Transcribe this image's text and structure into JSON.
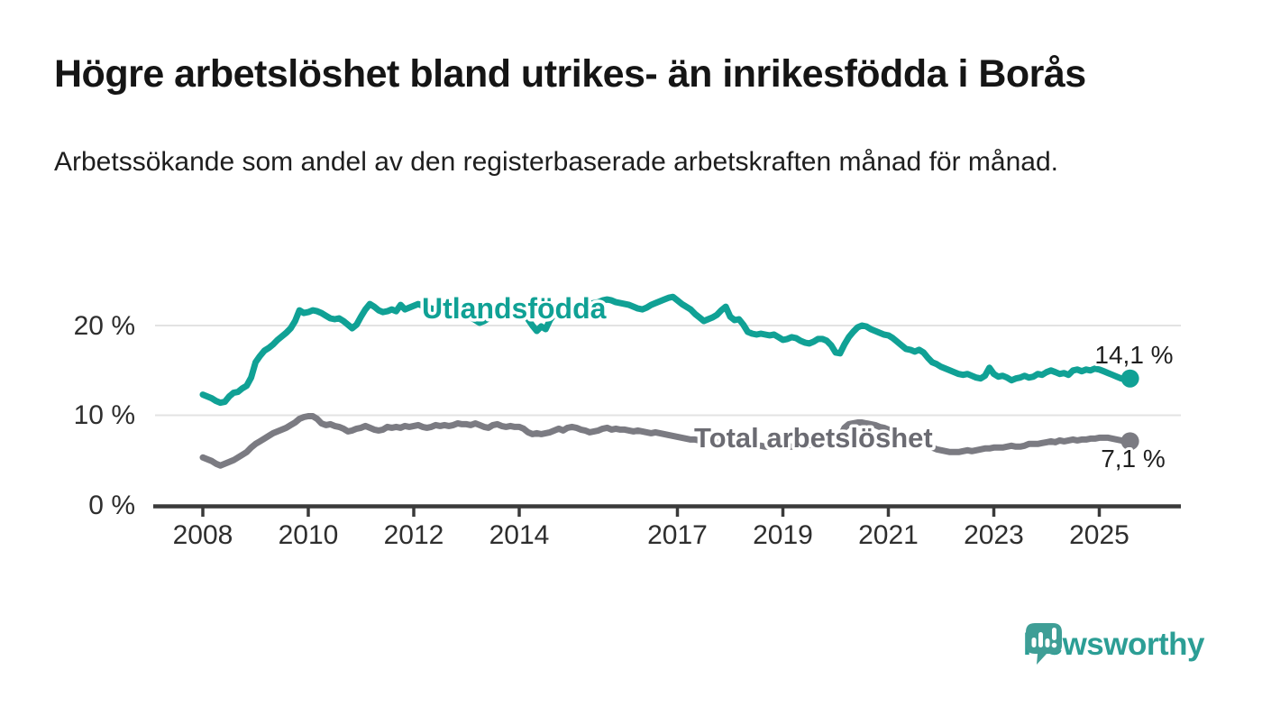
{
  "header": {
    "title": "Högre arbetslöshet bland utrikes- än inrikesfödda i Borås",
    "subtitle": "Arbetssökande som andel av den registerbaserade arbetskraften månad för månad."
  },
  "chart_data": {
    "type": "line",
    "title": "Högre arbetslöshet bland utrikes- än inrikesfödda i Borås",
    "subtitle": "Arbetssökande som andel av den registerbaserade arbetskraften månad för månad.",
    "unit": "%",
    "grid": "horizontal",
    "legend": "inline-labels",
    "x_axis": {
      "start": "2008-01",
      "end": "2025-08",
      "tick_labels": [
        "2008",
        "2010",
        "2012",
        "2014",
        "2017",
        "2019",
        "2021",
        "2023",
        "2025"
      ]
    },
    "y_axis": {
      "ticks": [
        0,
        10,
        20
      ],
      "tick_labels": [
        "0 %",
        "10 %",
        "20 %"
      ],
      "range": [
        0,
        24
      ]
    },
    "series": [
      {
        "name": "Utlandsfödda",
        "color": "#10a195",
        "label_color": "#10a195",
        "frequency": "monthly",
        "start": "2008-01",
        "end_label": "14,1 %",
        "end_value": 14.1,
        "values": [
          12.3,
          12.1,
          11.9,
          11.6,
          11.4,
          11.5,
          12.1,
          12.5,
          12.6,
          13.0,
          13.3,
          14.2,
          15.9,
          16.6,
          17.2,
          17.5,
          17.9,
          18.4,
          18.8,
          19.2,
          19.7,
          20.5,
          21.7,
          21.4,
          21.5,
          21.7,
          21.6,
          21.4,
          21.1,
          20.8,
          20.7,
          20.8,
          20.5,
          20.1,
          19.7,
          20.1,
          21.0,
          21.8,
          22.4,
          22.1,
          21.7,
          21.5,
          21.6,
          21.8,
          21.6,
          22.3,
          21.8,
          22.0,
          22.2,
          22.4,
          22.2,
          22.0,
          21.9,
          21.8,
          21.7,
          21.6,
          21.5,
          21.4,
          21.3,
          21.2,
          21.1,
          20.9,
          20.6,
          20.3,
          20.5,
          20.8,
          21.0,
          21.3,
          21.5,
          21.7,
          21.9,
          22.0,
          22.0,
          21.4,
          20.7,
          20.0,
          19.4,
          19.9,
          19.6,
          20.6,
          21.3,
          21.8,
          22.0,
          22.1,
          22.2,
          22.3,
          22.2,
          22.3,
          22.4,
          22.5,
          22.6,
          22.8,
          22.9,
          22.8,
          22.6,
          22.5,
          22.4,
          22.3,
          22.1,
          21.9,
          21.8,
          22.0,
          22.3,
          22.5,
          22.7,
          22.9,
          23.1,
          23.2,
          22.8,
          22.4,
          22.1,
          21.8,
          21.3,
          20.9,
          20.5,
          20.7,
          20.9,
          21.2,
          21.7,
          22.1,
          21.0,
          20.6,
          20.7,
          20.1,
          19.3,
          19.1,
          19.0,
          19.1,
          19.0,
          18.9,
          19.0,
          18.7,
          18.4,
          18.5,
          18.7,
          18.6,
          18.3,
          18.1,
          18.0,
          18.2,
          18.5,
          18.5,
          18.3,
          17.8,
          17.0,
          16.9,
          17.9,
          18.7,
          19.3,
          19.8,
          20.0,
          19.9,
          19.6,
          19.4,
          19.2,
          19.0,
          18.9,
          18.6,
          18.2,
          17.8,
          17.4,
          17.3,
          17.1,
          17.3,
          17.0,
          16.4,
          15.9,
          15.7,
          15.4,
          15.2,
          15.0,
          14.8,
          14.6,
          14.5,
          14.6,
          14.4,
          14.2,
          14.1,
          14.4,
          15.3,
          14.6,
          14.3,
          14.4,
          14.2,
          13.9,
          14.1,
          14.2,
          14.4,
          14.2,
          14.3,
          14.6,
          14.5,
          14.8,
          15.0,
          14.8,
          14.6,
          14.7,
          14.5,
          15.0,
          15.1,
          14.9,
          15.1,
          15.0,
          15.2,
          15.1,
          14.9,
          14.7,
          14.5,
          14.3,
          14.1,
          14.0,
          14.1
        ]
      },
      {
        "name": "Total arbetslöshet",
        "color": "#7b7b82",
        "label_color": "#6b6b72",
        "frequency": "monthly",
        "start": "2008-01",
        "end_label": "7,1 %",
        "end_value": 7.1,
        "values": [
          5.3,
          5.1,
          4.9,
          4.6,
          4.4,
          4.6,
          4.8,
          5.0,
          5.3,
          5.6,
          5.9,
          6.4,
          6.8,
          7.1,
          7.4,
          7.7,
          8.0,
          8.2,
          8.4,
          8.6,
          8.9,
          9.2,
          9.6,
          9.8,
          9.9,
          9.9,
          9.6,
          9.1,
          8.9,
          9.0,
          8.8,
          8.7,
          8.5,
          8.2,
          8.3,
          8.5,
          8.6,
          8.8,
          8.6,
          8.4,
          8.3,
          8.4,
          8.7,
          8.6,
          8.7,
          8.6,
          8.8,
          8.7,
          8.8,
          8.9,
          8.7,
          8.6,
          8.7,
          8.9,
          8.8,
          8.9,
          8.8,
          8.9,
          9.1,
          9.0,
          9.0,
          8.9,
          9.1,
          8.9,
          8.7,
          8.6,
          8.9,
          9.0,
          8.8,
          8.7,
          8.8,
          8.7,
          8.7,
          8.5,
          8.1,
          7.9,
          8.0,
          7.9,
          8.0,
          8.1,
          8.3,
          8.5,
          8.3,
          8.6,
          8.7,
          8.6,
          8.4,
          8.3,
          8.1,
          8.2,
          8.3,
          8.5,
          8.6,
          8.4,
          8.5,
          8.4,
          8.4,
          8.3,
          8.2,
          8.3,
          8.2,
          8.1,
          8.0,
          8.1,
          8.0,
          7.9,
          7.8,
          7.7,
          7.6,
          7.5,
          7.4,
          7.3,
          7.3,
          7.2,
          7.2,
          7.1,
          7.1,
          7.0,
          7.0,
          7.0,
          7.0,
          6.9,
          6.8,
          6.8,
          6.7,
          6.7,
          6.6,
          6.6,
          6.5,
          6.5,
          6.5,
          6.5,
          6.5,
          6.5,
          6.5,
          6.5,
          6.6,
          6.6,
          6.7,
          6.7,
          6.7,
          6.8,
          6.8,
          6.9,
          7.2,
          7.6,
          8.6,
          9.0,
          9.1,
          9.2,
          9.2,
          9.1,
          9.0,
          8.9,
          8.7,
          8.6,
          8.4,
          8.2,
          8.0,
          7.8,
          7.6,
          7.4,
          7.2,
          7.0,
          6.8,
          6.6,
          6.4,
          6.2,
          6.1,
          6.0,
          5.9,
          5.9,
          5.9,
          6.0,
          6.1,
          6.0,
          6.1,
          6.2,
          6.3,
          6.3,
          6.4,
          6.4,
          6.4,
          6.5,
          6.6,
          6.5,
          6.5,
          6.6,
          6.8,
          6.8,
          6.8,
          6.9,
          7.0,
          7.1,
          7.0,
          7.2,
          7.1,
          7.2,
          7.3,
          7.2,
          7.3,
          7.3,
          7.4,
          7.4,
          7.5,
          7.5,
          7.5,
          7.4,
          7.3,
          7.2,
          7.0,
          7.1
        ]
      }
    ]
  },
  "branding": {
    "name": "Newsworthy",
    "logo_icon": "speech-bubble-bar-chart",
    "color": "#2c9e95",
    "bubble_color": "#3f9e96"
  }
}
